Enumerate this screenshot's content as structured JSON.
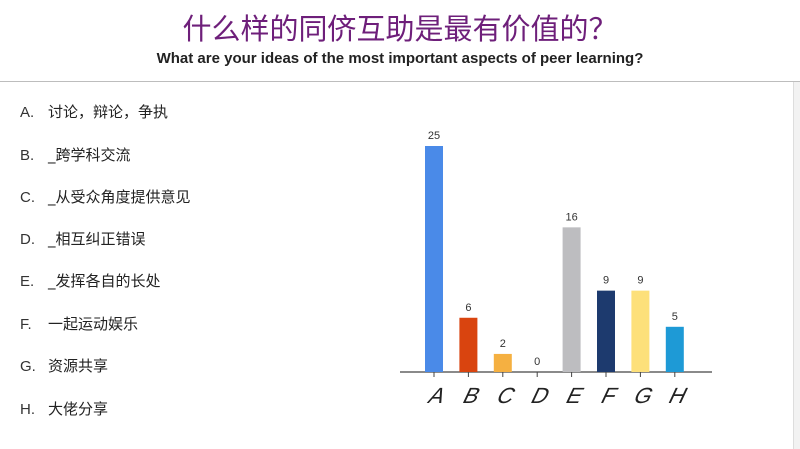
{
  "header": {
    "title": "什么样的同侪互助是最有价值的？",
    "subtitle": "What are your ideas of the most important aspects of peer learning?"
  },
  "options": [
    {
      "letter": "A.",
      "text": "讨论，辩论，争执"
    },
    {
      "letter": "B.",
      "text": "_跨学科交流"
    },
    {
      "letter": "C.",
      "text": "_从受众角度提供意见"
    },
    {
      "letter": "D.",
      "text": "_相互纠正错误"
    },
    {
      "letter": "E.",
      "text": "_发挥各自的长处"
    },
    {
      "letter": "F.",
      "text": "一起运动娱乐"
    },
    {
      "letter": "G.",
      "text": "资源共享"
    },
    {
      "letter": "H.",
      "text": "大佬分享"
    }
  ],
  "chart_data": {
    "type": "bar",
    "categories": [
      "A",
      "B",
      "C",
      "D",
      "E",
      "F",
      "G",
      "H"
    ],
    "values": [
      25,
      6,
      2,
      0,
      16,
      9,
      9,
      5
    ],
    "colors": [
      "#4a8ae8",
      "#d9440f",
      "#f5b041",
      "#cccccc",
      "#bdbdc0",
      "#1d3a6e",
      "#fde07a",
      "#1e9ad6"
    ],
    "title": "",
    "xlabel": "",
    "ylabel": "",
    "ylim": [
      0,
      25
    ],
    "grid": false,
    "data_labels": true
  }
}
